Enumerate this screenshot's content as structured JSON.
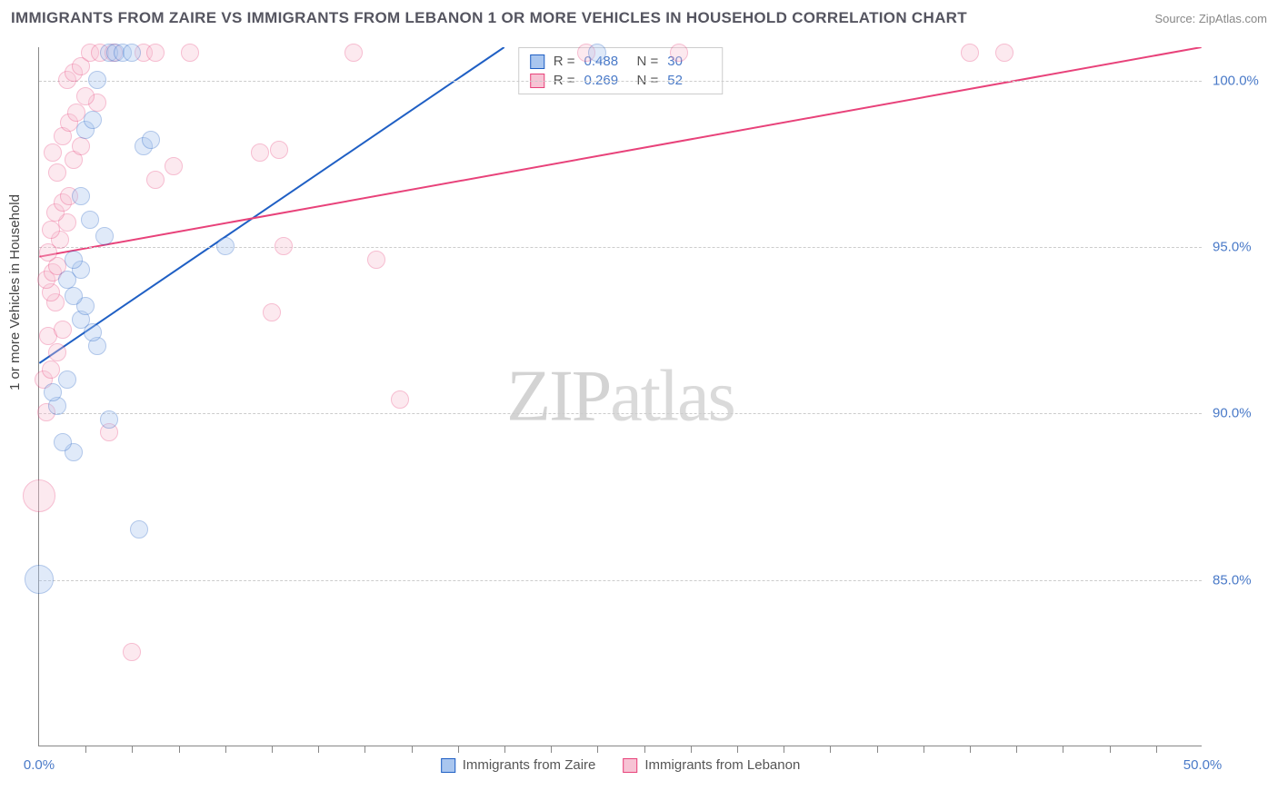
{
  "title": "IMMIGRANTS FROM ZAIRE VS IMMIGRANTS FROM LEBANON 1 OR MORE VEHICLES IN HOUSEHOLD CORRELATION CHART",
  "source": "Source: ZipAtlas.com",
  "y_axis_label": "1 or more Vehicles in Household",
  "watermark_a": "ZIP",
  "watermark_b": "atlas",
  "chart": {
    "type": "scatter",
    "xlim": [
      0,
      50
    ],
    "ylim": [
      80,
      101
    ],
    "x_ticks": [
      0,
      50
    ],
    "x_tick_labels": [
      "0.0%",
      "50.0%"
    ],
    "x_minor_ticks": [
      2,
      4,
      6,
      8,
      10,
      12,
      14,
      16,
      18,
      20,
      22,
      24,
      26,
      28,
      30,
      32,
      34,
      36,
      38,
      40,
      42,
      44,
      46,
      48
    ],
    "y_ticks": [
      85,
      90,
      95,
      100
    ],
    "y_tick_labels": [
      "85.0%",
      "90.0%",
      "95.0%",
      "100.0%"
    ],
    "grid_color": "#cccccc",
    "background_color": "#ffffff",
    "marker_opacity": 0.35,
    "marker_radius": 10,
    "series": [
      {
        "name": "Immigrants from Zaire",
        "color_fill": "#a9c6ef",
        "color_stroke": "#1f5fc4",
        "R": "0.488",
        "N": "30",
        "trend_line": {
          "x1": 0,
          "y1": 91.5,
          "x2": 20,
          "y2": 101,
          "color": "#1f5fc4",
          "width": 2
        },
        "points": [
          [
            0.0,
            85.0,
            16
          ],
          [
            4.3,
            86.5,
            10
          ],
          [
            1.5,
            88.8,
            10
          ],
          [
            1.0,
            89.1,
            10
          ],
          [
            3.0,
            89.8,
            10
          ],
          [
            0.8,
            90.2,
            10
          ],
          [
            0.6,
            90.6,
            10
          ],
          [
            1.2,
            91.0,
            10
          ],
          [
            2.5,
            92.0,
            10
          ],
          [
            2.3,
            92.4,
            10
          ],
          [
            1.8,
            92.8,
            10
          ],
          [
            2.0,
            93.2,
            10
          ],
          [
            1.5,
            93.5,
            10
          ],
          [
            1.2,
            94.0,
            10
          ],
          [
            1.8,
            94.3,
            10
          ],
          [
            1.5,
            94.6,
            10
          ],
          [
            8.0,
            95.0,
            10
          ],
          [
            2.8,
            95.3,
            10
          ],
          [
            2.2,
            95.8,
            10
          ],
          [
            1.8,
            96.5,
            10
          ],
          [
            4.5,
            98.0,
            10
          ],
          [
            4.8,
            98.2,
            10
          ],
          [
            2.0,
            98.5,
            10
          ],
          [
            2.3,
            98.8,
            10
          ],
          [
            2.5,
            100.0,
            10
          ],
          [
            3.0,
            100.8,
            10
          ],
          [
            3.3,
            100.8,
            10
          ],
          [
            3.6,
            100.8,
            10
          ],
          [
            4.0,
            100.8,
            10
          ],
          [
            24.0,
            100.8,
            10
          ]
        ]
      },
      {
        "name": "Immigrants from Lebanon",
        "color_fill": "#f7c3d4",
        "color_stroke": "#e8427a",
        "R": "0.269",
        "N": "52",
        "trend_line": {
          "x1": 0,
          "y1": 94.7,
          "x2": 50,
          "y2": 101,
          "color": "#e8427a",
          "width": 2
        },
        "points": [
          [
            0.0,
            87.5,
            18
          ],
          [
            4.0,
            82.8,
            10
          ],
          [
            3.0,
            89.4,
            10
          ],
          [
            0.3,
            90.0,
            10
          ],
          [
            15.5,
            90.4,
            10
          ],
          [
            0.2,
            91.0,
            10
          ],
          [
            0.5,
            91.3,
            10
          ],
          [
            0.8,
            91.8,
            10
          ],
          [
            0.4,
            92.3,
            10
          ],
          [
            1.0,
            92.5,
            10
          ],
          [
            10.0,
            93.0,
            10
          ],
          [
            0.7,
            93.3,
            10
          ],
          [
            0.5,
            93.6,
            10
          ],
          [
            0.3,
            94.0,
            10
          ],
          [
            0.6,
            94.2,
            10
          ],
          [
            0.8,
            94.4,
            10
          ],
          [
            14.5,
            94.6,
            10
          ],
          [
            0.4,
            94.8,
            10
          ],
          [
            10.5,
            95.0,
            10
          ],
          [
            0.9,
            95.2,
            10
          ],
          [
            0.5,
            95.5,
            10
          ],
          [
            1.2,
            95.7,
            10
          ],
          [
            0.7,
            96.0,
            10
          ],
          [
            1.0,
            96.3,
            10
          ],
          [
            1.3,
            96.5,
            10
          ],
          [
            5.0,
            97.0,
            10
          ],
          [
            0.8,
            97.2,
            10
          ],
          [
            5.8,
            97.4,
            10
          ],
          [
            1.5,
            97.6,
            10
          ],
          [
            0.6,
            97.8,
            10
          ],
          [
            9.5,
            97.8,
            10
          ],
          [
            10.3,
            97.9,
            10
          ],
          [
            1.8,
            98.0,
            10
          ],
          [
            1.0,
            98.3,
            10
          ],
          [
            1.3,
            98.7,
            10
          ],
          [
            1.6,
            99.0,
            10
          ],
          [
            2.5,
            99.3,
            10
          ],
          [
            2.0,
            99.5,
            10
          ],
          [
            1.2,
            100.0,
            10
          ],
          [
            1.5,
            100.2,
            10
          ],
          [
            1.8,
            100.4,
            10
          ],
          [
            2.2,
            100.8,
            10
          ],
          [
            2.6,
            100.8,
            10
          ],
          [
            3.2,
            100.8,
            10
          ],
          [
            4.5,
            100.8,
            10
          ],
          [
            5.0,
            100.8,
            10
          ],
          [
            6.5,
            100.8,
            10
          ],
          [
            13.5,
            100.8,
            10
          ],
          [
            27.5,
            100.8,
            10
          ],
          [
            40.0,
            100.8,
            10
          ],
          [
            41.5,
            100.8,
            10
          ],
          [
            23.5,
            100.8,
            10
          ]
        ]
      }
    ]
  },
  "stats_labels": {
    "R": "R =",
    "N": "N ="
  }
}
